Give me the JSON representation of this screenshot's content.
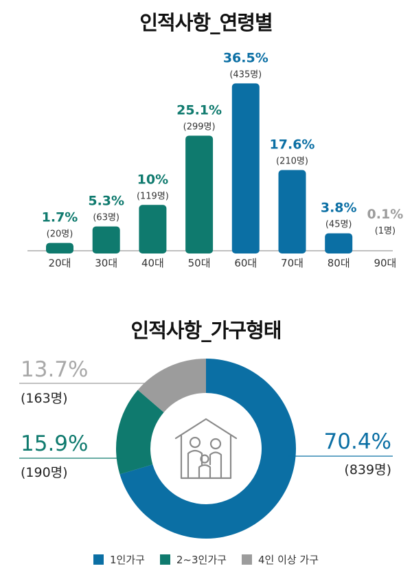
{
  "chart_data": [
    {
      "type": "bar",
      "title": "인적사항_연령별",
      "categories": [
        "20대",
        "30대",
        "40대",
        "50대",
        "60대",
        "70대",
        "80대",
        "90대"
      ],
      "values": [
        1.7,
        5.3,
        10,
        25.1,
        36.5,
        17.6,
        3.8,
        0.1
      ],
      "value_labels": [
        "1.7%",
        "5.3%",
        "10%",
        "25.1%",
        "36.5%",
        "17.6%",
        "3.8%",
        "0.1%"
      ],
      "count_labels": [
        "(20명)",
        "(63명)",
        "(119명)",
        "(299명)",
        "(435명)",
        "(210명)",
        "(45명)",
        "(1명)"
      ],
      "colors": [
        "#0f7a6e",
        "#0f7a6e",
        "#0f7a6e",
        "#0f7a6e",
        "#0b6fa4",
        "#0b6fa4",
        "#0b6fa4",
        "#9c9c9c"
      ],
      "ylim": [
        0,
        40
      ],
      "grid": false
    },
    {
      "type": "pie",
      "title": "인적사항_가구형태",
      "categories": [
        "1인가구",
        "2~3인가구",
        "4인 이상 가구"
      ],
      "values": [
        70.4,
        15.9,
        13.7
      ],
      "value_labels": [
        "70.4%",
        "15.9%",
        "13.7%"
      ],
      "count_labels": [
        "(839명)",
        "(190명)",
        "(163명)"
      ],
      "colors": [
        "#0b6fa4",
        "#0f7a6e",
        "#9c9c9c"
      ],
      "legend_placement": "bottom"
    }
  ],
  "icon": "family-house-icon"
}
